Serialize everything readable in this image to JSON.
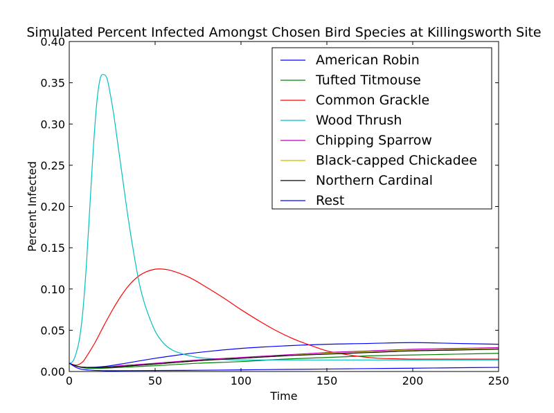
{
  "chart_data": {
    "type": "line",
    "title": "Simulated Percent Infected Amongst Chosen Bird Species at Killingsworth Site",
    "xlabel": "Time",
    "ylabel": "Percent Infected",
    "xlim": [
      0,
      250
    ],
    "ylim": [
      0,
      0.4
    ],
    "xticks": [
      0,
      50,
      100,
      150,
      200,
      250
    ],
    "yticks": [
      0.0,
      0.05,
      0.1,
      0.15,
      0.2,
      0.25,
      0.3,
      0.35,
      0.4
    ],
    "xtick_labels": [
      "0",
      "50",
      "100",
      "150",
      "200",
      "250"
    ],
    "ytick_labels": [
      "0.00",
      "0.05",
      "0.10",
      "0.15",
      "0.20",
      "0.25",
      "0.30",
      "0.35",
      "0.40"
    ],
    "grid": false,
    "legend_position": "top-right",
    "series": [
      {
        "name": "American Robin",
        "color": "#0000ff",
        "x": [
          0,
          5,
          10,
          20,
          30,
          50,
          75,
          100,
          125,
          150,
          175,
          200,
          225,
          250
        ],
        "y": [
          0.01,
          0.006,
          0.005,
          0.006,
          0.009,
          0.016,
          0.023,
          0.028,
          0.031,
          0.033,
          0.034,
          0.035,
          0.034,
          0.033
        ]
      },
      {
        "name": "Tufted Titmouse",
        "color": "#008000",
        "x": [
          0,
          5,
          10,
          20,
          30,
          50,
          75,
          100,
          125,
          150,
          175,
          200,
          225,
          250
        ],
        "y": [
          0.01,
          0.006,
          0.004,
          0.004,
          0.005,
          0.007,
          0.01,
          0.012,
          0.015,
          0.017,
          0.019,
          0.02,
          0.021,
          0.022
        ]
      },
      {
        "name": "Common Grackle",
        "color": "#ff0000",
        "x": [
          0,
          3,
          5,
          8,
          10,
          15,
          20,
          25,
          30,
          35,
          40,
          45,
          50,
          55,
          60,
          70,
          80,
          90,
          100,
          110,
          120,
          130,
          140,
          150,
          160,
          170,
          180,
          190,
          200,
          225,
          250
        ],
        "y": [
          0.01,
          0.008,
          0.008,
          0.012,
          0.018,
          0.035,
          0.055,
          0.074,
          0.091,
          0.105,
          0.115,
          0.121,
          0.124,
          0.124,
          0.122,
          0.114,
          0.102,
          0.089,
          0.075,
          0.062,
          0.05,
          0.04,
          0.032,
          0.025,
          0.021,
          0.018,
          0.016,
          0.0155,
          0.015,
          0.015,
          0.015
        ]
      },
      {
        "name": "Wood Thrush",
        "color": "#00bfbf",
        "x": [
          0,
          2,
          4,
          6,
          8,
          10,
          12,
          14,
          16,
          18,
          20,
          22,
          24,
          26,
          28,
          30,
          32,
          34,
          36,
          38,
          40,
          42,
          45,
          50,
          55,
          60,
          65,
          70,
          75,
          80,
          90,
          100,
          125,
          150,
          200,
          250
        ],
        "y": [
          0.01,
          0.012,
          0.022,
          0.04,
          0.075,
          0.13,
          0.2,
          0.27,
          0.325,
          0.355,
          0.36,
          0.355,
          0.335,
          0.31,
          0.28,
          0.25,
          0.22,
          0.19,
          0.163,
          0.138,
          0.115,
          0.096,
          0.075,
          0.049,
          0.034,
          0.026,
          0.022,
          0.019,
          0.017,
          0.016,
          0.0145,
          0.014,
          0.014,
          0.014,
          0.014,
          0.014
        ]
      },
      {
        "name": "Chipping Sparrow",
        "color": "#bf00bf",
        "x": [
          0,
          5,
          10,
          20,
          30,
          50,
          75,
          100,
          125,
          150,
          175,
          200,
          225,
          250
        ],
        "y": [
          0.01,
          0.006,
          0.005,
          0.005,
          0.007,
          0.01,
          0.014,
          0.017,
          0.02,
          0.023,
          0.025,
          0.027,
          0.028,
          0.029
        ]
      },
      {
        "name": "Black-capped Chickadee",
        "color": "#bfbf00",
        "x": [
          0,
          5,
          10,
          20,
          30,
          50,
          75,
          100,
          125,
          150,
          175,
          200,
          225,
          250
        ],
        "y": [
          0.01,
          0.006,
          0.005,
          0.005,
          0.006,
          0.009,
          0.013,
          0.016,
          0.019,
          0.022,
          0.024,
          0.026,
          0.027,
          0.028
        ]
      },
      {
        "name": "Northern Cardinal",
        "color": "#000000",
        "x": [
          0,
          5,
          10,
          20,
          30,
          50,
          75,
          100,
          125,
          150,
          175,
          200,
          225,
          250
        ],
        "y": [
          0.01,
          0.006,
          0.005,
          0.005,
          0.006,
          0.009,
          0.013,
          0.016,
          0.019,
          0.021,
          0.023,
          0.025,
          0.026,
          0.027
        ]
      },
      {
        "name": "Rest",
        "color": "#0000ff",
        "x": [
          0,
          5,
          10,
          20,
          30,
          50,
          75,
          100,
          125,
          150,
          175,
          200,
          225,
          250
        ],
        "y": [
          0.01,
          0.004,
          0.002,
          0.001,
          0.001,
          0.0012,
          0.0015,
          0.002,
          0.0025,
          0.003,
          0.0035,
          0.004,
          0.0045,
          0.005
        ]
      }
    ]
  }
}
